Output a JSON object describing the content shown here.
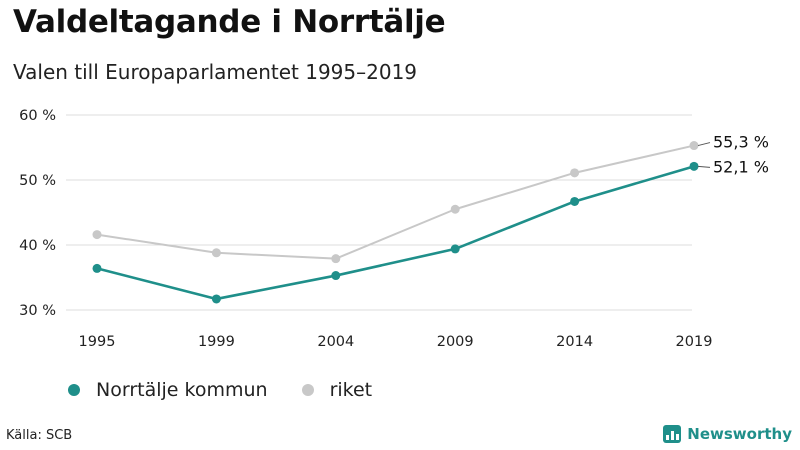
{
  "title": "Valdeltagande i Norrtälje",
  "subtitle": "Valen till Europaparlamentet 1995–2019",
  "source": "Källa: SCB",
  "brand": "Newsworthy",
  "colors": {
    "kommun": "#1f8f8a",
    "riket": "#c8c8c8",
    "grid": "#dddddd"
  },
  "chart_data": {
    "type": "line",
    "title": "Valdeltagande i Norrtälje",
    "subtitle": "Valen till Europaparlamentet 1995–2019",
    "x": [
      "1995",
      "1999",
      "2004",
      "2009",
      "2014",
      "2019"
    ],
    "ylim": [
      30,
      60
    ],
    "yticks": [
      30,
      40,
      50,
      60
    ],
    "ytick_labels": [
      "30 %",
      "40 %",
      "50 %",
      "60 %"
    ],
    "grid": true,
    "legend": "bottom-left",
    "series": [
      {
        "name": "Norrtälje kommun",
        "values": [
          36.4,
          31.7,
          35.3,
          39.4,
          46.7,
          52.1
        ],
        "end_label": "52,1 %"
      },
      {
        "name": "riket",
        "values": [
          41.6,
          38.8,
          37.9,
          45.5,
          51.1,
          55.3
        ],
        "end_label": "55,3 %"
      }
    ]
  }
}
